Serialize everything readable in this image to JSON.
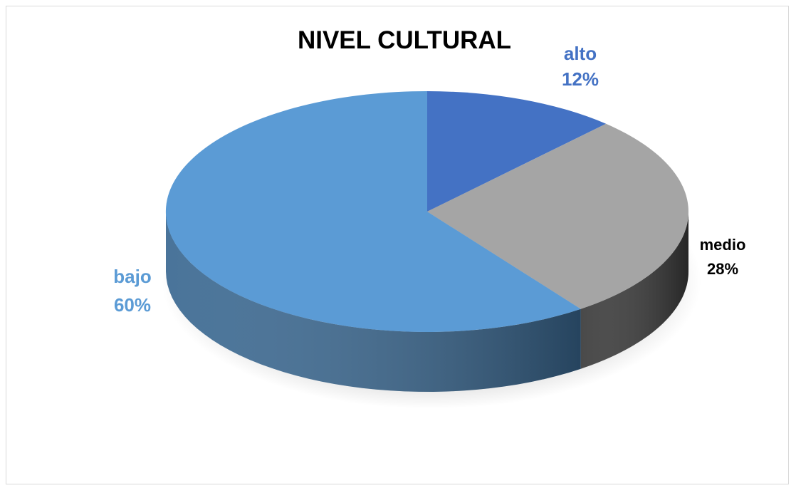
{
  "chart_data": {
    "type": "pie",
    "title": "NIVEL CULTURAL",
    "slices": [
      {
        "label": "alto",
        "value": 12,
        "value_label": "12%",
        "color": "#4472c4",
        "side_color": "#2f5597",
        "label_color": "#4472c4"
      },
      {
        "label": "medio",
        "value": 28,
        "value_label": "28%",
        "color": "#a5a5a5",
        "side_color": "#3a3a3a",
        "label_color": "#000000"
      },
      {
        "label": "bajo",
        "value": 60,
        "value_label": "60%",
        "color": "#5b9bd5",
        "side_color": "#3a6891",
        "label_color": "#5b9bd5"
      }
    ],
    "style": "3d-pie",
    "legend": "none"
  }
}
